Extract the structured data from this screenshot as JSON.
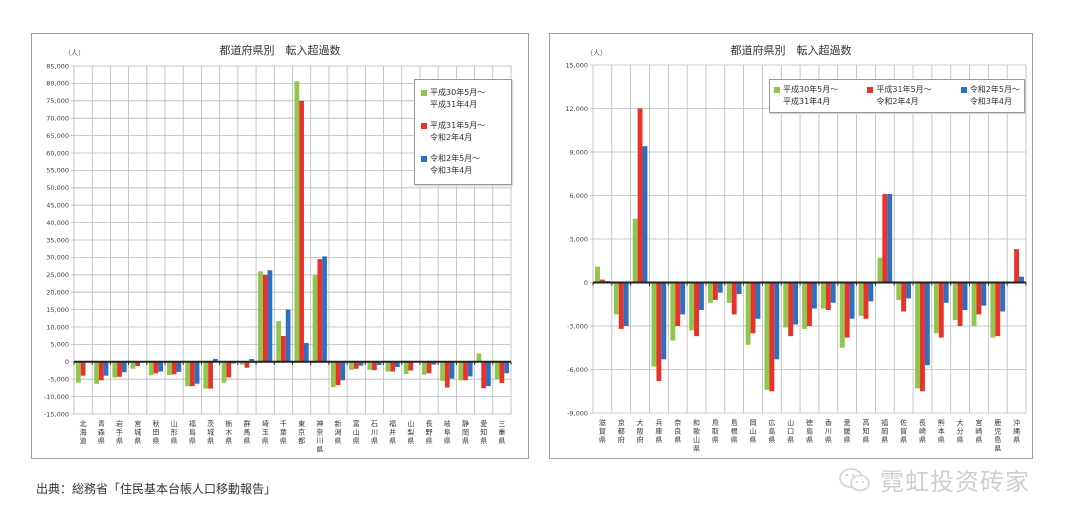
{
  "colors": {
    "series1": "#92c54c",
    "series2": "#e8322a",
    "series3": "#2e6fc2",
    "grid": "#b8b8b8",
    "axis": "#222222"
  },
  "legend": [
    {
      "line1": "平成30年5月～",
      "line2": "平成31年4月"
    },
    {
      "line1": "平成31年5月～",
      "line2": "令和2年4月"
    },
    {
      "line1": "令和2年5月～",
      "line2": "令和3年4月"
    }
  ],
  "source": "出典：総務省「住民基本台帳人口移動報告」",
  "watermark": "霓虹投资砖家",
  "left_chart": {
    "title": "都道府県別　転入超過数",
    "unit": "（人）"
  },
  "right_chart": {
    "title": "都道府県別　転入超過数",
    "unit": "（人）"
  },
  "chart_data": [
    {
      "type": "bar",
      "title": "都道府県別　転入超過数",
      "ylabel": "（人）",
      "ylim": [
        -15000,
        85000
      ],
      "ytick_step": 5000,
      "grid": true,
      "legend_position": "upper right (vertical)",
      "categories": [
        "北海道",
        "青森県",
        "岩手県",
        "宮城県",
        "秋田県",
        "山形県",
        "福島県",
        "茨城県",
        "栃木県",
        "群馬県",
        "埼玉県",
        "千葉県",
        "東京都",
        "神奈川県",
        "新潟県",
        "富山県",
        "石川県",
        "福井県",
        "山梨県",
        "長野県",
        "岐阜県",
        "静岡県",
        "愛知県",
        "三重県"
      ],
      "series": [
        {
          "name": "平成30年5月～平成31年4月",
          "values": [
            -6000,
            -6300,
            -4500,
            -2000,
            -3900,
            -3800,
            -7000,
            -7700,
            -6000,
            -800,
            26000,
            11700,
            80600,
            25000,
            -7300,
            -2300,
            -2300,
            -2800,
            -3500,
            -3700,
            -5500,
            -5300,
            2400,
            -5000
          ]
        },
        {
          "name": "平成31年5月～令和2年4月",
          "values": [
            -4000,
            -5300,
            -4300,
            -1200,
            -3300,
            -3600,
            -7000,
            -7700,
            -4500,
            -1700,
            25000,
            7400,
            75000,
            29500,
            -6700,
            -2000,
            -2400,
            -2800,
            -2500,
            -3300,
            -7400,
            -5300,
            -7600,
            -6100
          ]
        },
        {
          "name": "令和2年5月～令和3年4月",
          "values": [
            0,
            -4000,
            -3000,
            0,
            -2800,
            -2900,
            -6300,
            800,
            -500,
            800,
            26300,
            15000,
            5400,
            30300,
            -5300,
            -1100,
            -900,
            -1500,
            0,
            -800,
            -4800,
            -4200,
            -7000,
            -3300
          ]
        }
      ]
    },
    {
      "type": "bar",
      "title": "都道府県別　転入超過数",
      "ylabel": "（人）",
      "ylim": [
        -9000,
        15000
      ],
      "ytick_step": 3000,
      "grid": true,
      "legend_position": "top right (horizontal)",
      "categories": [
        "滋賀県",
        "京都府",
        "大阪府",
        "兵庫県",
        "奈良県",
        "和歌山県",
        "鳥取県",
        "島根県",
        "岡山県",
        "広島県",
        "山口県",
        "徳島県",
        "香川県",
        "愛媛県",
        "高知県",
        "福岡県",
        "佐賀県",
        "長崎県",
        "熊本県",
        "大分県",
        "宮崎県",
        "鹿児島県",
        "沖縄県"
      ],
      "series": [
        {
          "name": "平成30年5月～平成31年4月",
          "values": [
            1100,
            -2200,
            4400,
            -5800,
            -4000,
            -3300,
            -1400,
            -1400,
            -4300,
            -7400,
            -3100,
            -3200,
            -1800,
            -4500,
            -2300,
            1700,
            -1200,
            -7300,
            -3500,
            -2600,
            -3000,
            -3800,
            0
          ]
        },
        {
          "name": "平成31年5月～令和2年4月",
          "values": [
            200,
            -3200,
            12000,
            -6800,
            -3000,
            -3700,
            -1200,
            -2200,
            -3500,
            -7500,
            -3700,
            -3000,
            -1900,
            -3800,
            -2500,
            6100,
            -2000,
            -7500,
            -3800,
            -3000,
            -2200,
            -3700,
            2300
          ]
        },
        {
          "name": "令和2年5月～令和3年4月",
          "values": [
            100,
            -3000,
            9400,
            -5300,
            -2200,
            -1900,
            -700,
            -800,
            -2500,
            -5300,
            -2900,
            -1800,
            -1400,
            -2500,
            -1300,
            6100,
            -1100,
            -5700,
            -1400,
            -1900,
            -1600,
            -2000,
            400
          ]
        }
      ]
    }
  ]
}
